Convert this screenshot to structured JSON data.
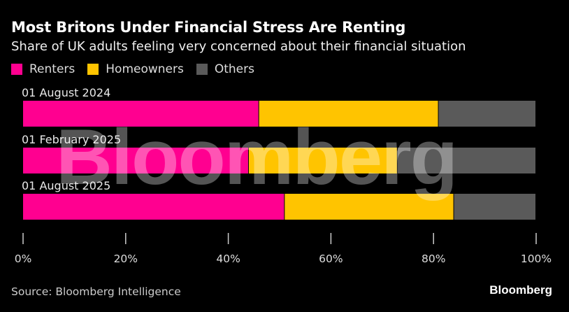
{
  "chart_data": {
    "type": "bar",
    "orientation": "horizontal-stacked",
    "title": "Most Britons Under Financial Stress Are Renting",
    "subtitle": "Share of UK adults feeling very concerned about their financial situation",
    "categories": [
      "01 August 2024",
      "01 February 2025",
      "01 August 2025"
    ],
    "series": [
      {
        "name": "Renters",
        "color": "#ff0090",
        "values": [
          46,
          44,
          51
        ]
      },
      {
        "name": "Homeowners",
        "color": "#ffc400",
        "values": [
          35,
          29,
          33
        ]
      },
      {
        "name": "Others",
        "color": "#5a5a5a",
        "values": [
          19,
          27,
          16
        ]
      }
    ],
    "xlim": [
      0,
      100
    ],
    "xticks": [
      "0%",
      "20%",
      "40%",
      "60%",
      "80%",
      "100%"
    ],
    "legend": "top-left",
    "grid": false
  },
  "source": "Source: Bloomberg Intelligence",
  "brand": "Bloomberg",
  "watermark": "Bloomberg"
}
